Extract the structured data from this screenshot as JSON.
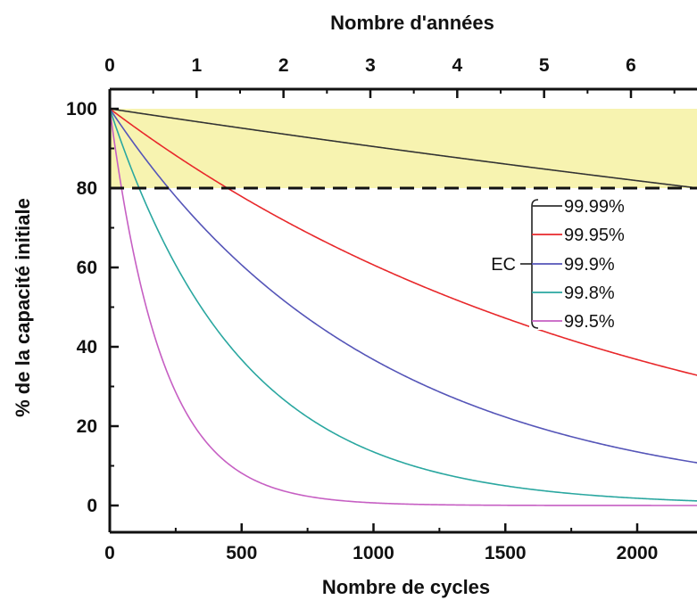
{
  "chart_data": {
    "type": "line",
    "xlabel": "Nombre de cycles",
    "x2label": "Nombre d'années",
    "ylabel": "% de la capacité initiale",
    "xlim": [
      0,
      2200
    ],
    "x2lim": [
      0,
      6.7
    ],
    "ylim": [
      0,
      100
    ],
    "xticks": [
      0,
      500,
      1000,
      1500,
      2000
    ],
    "x2ticks": [
      0,
      1,
      2,
      3,
      4,
      5,
      6
    ],
    "yticks": [
      0,
      20,
      40,
      60,
      80,
      100
    ],
    "threshold": 80,
    "highlight_band": [
      80,
      100
    ],
    "highlight_color": "#f7f3b0",
    "legend_group_label": "EC",
    "legend_position": "right",
    "grid": false,
    "series": [
      {
        "name": "99.99%",
        "color": "#333333",
        "ce": 0.9999
      },
      {
        "name": "99.95%",
        "color": "#e8282b",
        "ce": 0.9995
      },
      {
        "name": "99.9%",
        "color": "#5555b8",
        "ce": 0.999
      },
      {
        "name": "99.8%",
        "color": "#2aa7a0",
        "ce": 0.998
      },
      {
        "name": "99.5%",
        "color": "#c65fc3",
        "ce": 0.995
      }
    ]
  }
}
